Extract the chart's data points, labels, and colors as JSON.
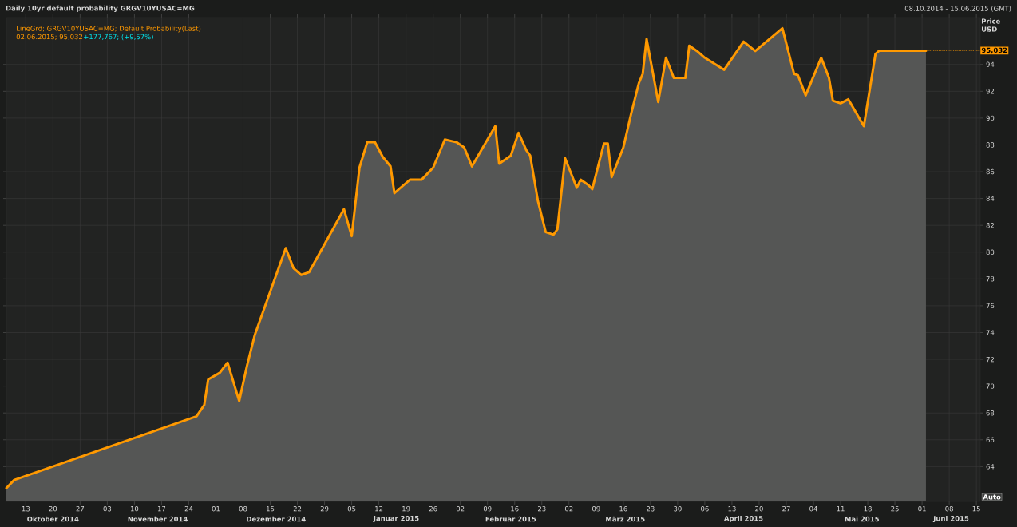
{
  "chart_data": {
    "type": "area",
    "title": "Daily 10yr default probability GRGV10YUSAC=MG",
    "subtitle": "08.10.2014 - 15.06.2015 (GMT)",
    "ylabel": "Price USD",
    "x": [
      "2014-10-08",
      "2014-10-10",
      "2014-11-26",
      "2014-11-28",
      "2014-11-29",
      "2014-12-02",
      "2014-12-04",
      "2014-12-07",
      "2014-12-09",
      "2014-12-11",
      "2014-12-19",
      "2014-12-21",
      "2014-12-23",
      "2014-12-25",
      "2015-01-03",
      "2015-01-05",
      "2015-01-07",
      "2015-01-09",
      "2015-01-11",
      "2015-01-13",
      "2015-01-15",
      "2015-01-16",
      "2015-01-20",
      "2015-01-23",
      "2015-01-26",
      "2015-01-29",
      "2015-02-01",
      "2015-02-03",
      "2015-02-05",
      "2015-02-11",
      "2015-02-12",
      "2015-02-15",
      "2015-02-17",
      "2015-02-19",
      "2015-02-20",
      "2015-02-22",
      "2015-02-24",
      "2015-02-26",
      "2015-02-27",
      "2015-03-01",
      "2015-03-04",
      "2015-03-05",
      "2015-03-07",
      "2015-03-08",
      "2015-03-11",
      "2015-03-12",
      "2015-03-13",
      "2015-03-16",
      "2015-03-18",
      "2015-03-20",
      "2015-03-21",
      "2015-03-22",
      "2015-03-25",
      "2015-03-27",
      "2015-03-29",
      "2015-04-01",
      "2015-04-02",
      "2015-04-04",
      "2015-04-06",
      "2015-04-11",
      "2015-04-16",
      "2015-04-19",
      "2015-04-26",
      "2015-04-29",
      "2015-04-30",
      "2015-05-02",
      "2015-05-06",
      "2015-05-08",
      "2015-05-09",
      "2015-05-11",
      "2015-05-13",
      "2015-05-17",
      "2015-05-20",
      "2015-05-21",
      "2015-06-02"
    ],
    "series": [
      {
        "color": "#ff9900",
        "values": [
          62.4,
          63.0,
          67.75,
          68.6,
          70.5,
          71.0,
          71.75,
          68.9,
          71.5,
          73.8,
          80.3,
          78.8,
          78.3,
          78.5,
          83.2,
          81.2,
          86.3,
          88.2,
          88.2,
          87.1,
          86.4,
          84.4,
          85.4,
          85.4,
          86.3,
          88.4,
          88.2,
          87.8,
          86.4,
          89.4,
          86.6,
          87.2,
          88.9,
          87.6,
          87.2,
          83.8,
          81.5,
          81.3,
          81.7,
          87.0,
          84.8,
          85.4,
          85.0,
          84.7,
          88.1,
          88.1,
          85.6,
          87.8,
          90.3,
          92.6,
          93.3,
          95.9,
          91.2,
          94.5,
          93.0,
          93.0,
          95.4,
          95.0,
          94.5,
          93.6,
          95.7,
          95.0,
          96.7,
          93.3,
          93.2,
          91.7,
          94.5,
          93.0,
          91.3,
          91.1,
          91.4,
          89.4,
          94.8,
          95.032,
          95.032
        ]
      }
    ],
    "xlim": [
      "2014-10-08",
      "2015-06-16"
    ],
    "ylim": [
      61.4,
      97.5
    ],
    "yticks": [
      64,
      66,
      68,
      70,
      72,
      74,
      76,
      78,
      80,
      82,
      84,
      86,
      88,
      90,
      92,
      94
    ],
    "xticks": [
      {
        "value": "2014-10-13",
        "label": "13"
      },
      {
        "value": "2014-10-20",
        "label": "20"
      },
      {
        "value": "2014-10-27",
        "label": "27"
      },
      {
        "value": "2014-11-03",
        "label": "03"
      },
      {
        "value": "2014-11-10",
        "label": "10"
      },
      {
        "value": "2014-11-17",
        "label": "17"
      },
      {
        "value": "2014-11-24",
        "label": "24"
      },
      {
        "value": "2014-12-01",
        "label": "01"
      },
      {
        "value": "2014-12-08",
        "label": "08"
      },
      {
        "value": "2014-12-15",
        "label": "15"
      },
      {
        "value": "2014-12-22",
        "label": "22"
      },
      {
        "value": "2014-12-29",
        "label": "29"
      },
      {
        "value": "2015-01-05",
        "label": "05"
      },
      {
        "value": "2015-01-12",
        "label": "12"
      },
      {
        "value": "2015-01-19",
        "label": "19"
      },
      {
        "value": "2015-01-26",
        "label": "26"
      },
      {
        "value": "2015-02-02",
        "label": "02"
      },
      {
        "value": "2015-02-09",
        "label": "09"
      },
      {
        "value": "2015-02-16",
        "label": "16"
      },
      {
        "value": "2015-02-23",
        "label": "23"
      },
      {
        "value": "2015-03-02",
        "label": "02"
      },
      {
        "value": "2015-03-09",
        "label": "09"
      },
      {
        "value": "2015-03-16",
        "label": "16"
      },
      {
        "value": "2015-03-23",
        "label": "23"
      },
      {
        "value": "2015-03-30",
        "label": "30"
      },
      {
        "value": "2015-04-06",
        "label": "06"
      },
      {
        "value": "2015-04-13",
        "label": "13"
      },
      {
        "value": "2015-04-20",
        "label": "20"
      },
      {
        "value": "2015-04-27",
        "label": "27"
      },
      {
        "value": "2015-05-04",
        "label": "04"
      },
      {
        "value": "2015-05-11",
        "label": "11"
      },
      {
        "value": "2015-05-18",
        "label": "18"
      },
      {
        "value": "2015-05-25",
        "label": "25"
      },
      {
        "value": "2015-06-01",
        "label": "01"
      },
      {
        "value": "2015-06-08",
        "label": "08"
      },
      {
        "value": "2015-06-15",
        "label": "15"
      }
    ],
    "grid": true,
    "annotations": [
      "LineGrd; GRGV10YUSAC=MG; Default Probability(Last)",
      "02.06.2015; 95,032",
      "+177,767; (+9,57%)",
      "Oktober 2014",
      "November 2014",
      "Dezember 2014",
      "Januar 2015",
      "Februar 2015",
      "März 2015",
      "April 2015",
      "Mai 2015",
      "Juni 2015",
      "Auto",
      {
        "text": "95,032",
        "x": "2015-06-02",
        "y": 95.032
      }
    ]
  }
}
